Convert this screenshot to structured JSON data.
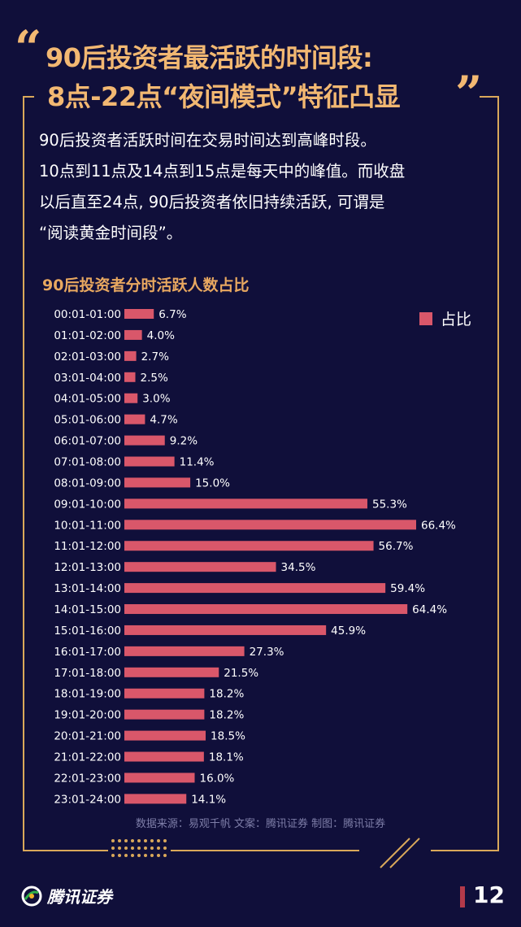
{
  "header": {
    "quote_open": "“",
    "quote_close": "”",
    "title_line1": "90后投资者最活跃的时间段:",
    "title_line2": "8点-22点“夜间模式”特征凸显"
  },
  "description": [
    "90后投资者活跃时间在交易时间达到高峰时段。",
    "10点到11点及14点到15点是每天中的峰值。而收盘",
    "以后直至24点, 90后投资者依旧持续活跃, 可谓是",
    "“阅读黄金时间段”。"
  ],
  "chart_data": {
    "type": "bar",
    "orientation": "horizontal",
    "title": "90后投资者分时活跃人数占比",
    "categories": [
      "00:01-01:00",
      "01:01-02:00",
      "02:01-03:00",
      "03:01-04:00",
      "04:01-05:00",
      "05:01-06:00",
      "06:01-07:00",
      "07:01-08:00",
      "08:01-09:00",
      "09:01-10:00",
      "10:01-11:00",
      "11:01-12:00",
      "12:01-13:00",
      "13:01-14:00",
      "14:01-15:00",
      "15:01-16:00",
      "16:01-17:00",
      "17:01-18:00",
      "18:01-19:00",
      "19:01-20:00",
      "20:01-21:00",
      "21:01-22:00",
      "22:01-23:00",
      "23:01-24:00"
    ],
    "series": [
      {
        "name": "占比",
        "values": [
          6.7,
          4.0,
          2.7,
          2.5,
          3.0,
          4.7,
          9.2,
          11.4,
          15.0,
          55.3,
          66.4,
          56.7,
          34.5,
          59.4,
          64.4,
          45.9,
          27.3,
          21.5,
          18.2,
          18.2,
          18.5,
          18.1,
          16.0,
          14.1
        ],
        "labels": [
          "6.7%",
          "4.0%",
          "2.7%",
          "2.5%",
          "3.0%",
          "4.7%",
          "9.2%",
          "11.4%",
          "15.0%",
          "55.3%",
          "66.4%",
          "56.7%",
          "34.5%",
          "59.4%",
          "64.4%",
          "45.9%",
          "27.3%",
          "21.5%",
          "18.2%",
          "18.2%",
          "18.5%",
          "18.1%",
          "16.0%",
          "14.1%"
        ]
      }
    ],
    "xlim": [
      0,
      66.4
    ],
    "grid": false,
    "legend": "top-right",
    "bar_color": "#d9576a"
  },
  "footer": {
    "source": "数据来源：易观千帆  文案：腾讯证券  制图：腾讯证券",
    "logo_text": "腾讯证券",
    "page_number": "12"
  },
  "colors": {
    "background": "#100f3a",
    "accent": "#f2b872",
    "bar": "#d9576a"
  }
}
